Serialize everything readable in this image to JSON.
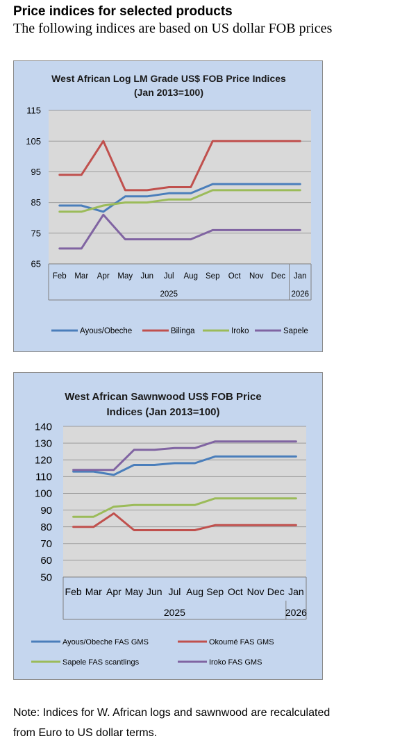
{
  "header": {
    "title": "Price indices for selected products",
    "subtitle": "The following indices are based on US dollar FOB prices"
  },
  "chart_data": [
    {
      "type": "line",
      "title_line1": "West African Log LM Grade US$ FOB Price Indices",
      "title_line2": "(Jan 2013=100)",
      "categories": [
        "Feb",
        "Mar",
        "Apr",
        "May",
        "Jun",
        "Jul",
        "Aug",
        "Sep",
        "Oct",
        "Nov",
        "Dec",
        "Jan"
      ],
      "year_labels": [
        "2025",
        "2026"
      ],
      "yticks": [
        65,
        75,
        85,
        95,
        105,
        115
      ],
      "ylim": [
        65,
        115
      ],
      "grid": true,
      "legend_position": "bottom",
      "series": [
        {
          "name": "Ayous/Obeche",
          "color": "#4a7ebb",
          "values": [
            84,
            84,
            82,
            87,
            87,
            88,
            88,
            91,
            91,
            91,
            91,
            91
          ]
        },
        {
          "name": "Bilinga",
          "color": "#c0504d",
          "values": [
            94,
            94,
            105,
            89,
            89,
            90,
            90,
            105,
            105,
            105,
            105,
            105
          ]
        },
        {
          "name": "Iroko",
          "color": "#9bbb59",
          "values": [
            82,
            82,
            84,
            85,
            85,
            86,
            86,
            89,
            89,
            89,
            89,
            89
          ]
        },
        {
          "name": "Sapele",
          "color": "#8064a2",
          "values": [
            70,
            70,
            81,
            73,
            73,
            73,
            73,
            76,
            76,
            76,
            76,
            76
          ]
        }
      ]
    },
    {
      "type": "line",
      "title_line1": "West African Sawnwood US$ FOB Price",
      "title_line2": "Indices (Jan 2013=100)",
      "categories": [
        "Feb",
        "Mar",
        "Apr",
        "May",
        "Jun",
        "Jul",
        "Aug",
        "Sep",
        "Oct",
        "Nov",
        "Dec",
        "Jan"
      ],
      "year_labels": [
        "2025",
        "2026"
      ],
      "yticks": [
        50,
        60,
        70,
        80,
        90,
        100,
        110,
        120,
        130,
        140
      ],
      "ylim": [
        50,
        140
      ],
      "grid": true,
      "legend_position": "bottom",
      "series": [
        {
          "name": "Ayous/Obeche  FAS GMS",
          "color": "#4a7ebb",
          "values": [
            113,
            113,
            111,
            117,
            117,
            118,
            118,
            122,
            122,
            122,
            122,
            122
          ]
        },
        {
          "name": "Okoumé  FAS GMS",
          "color": "#c0504d",
          "values": [
            80,
            80,
            88,
            78,
            78,
            78,
            78,
            81,
            81,
            81,
            81,
            81
          ]
        },
        {
          "name": "Sapele FAS scantlings",
          "color": "#9bbb59",
          "values": [
            86,
            86,
            92,
            93,
            93,
            93,
            93,
            97,
            97,
            97,
            97,
            97
          ]
        },
        {
          "name": "Iroko FAS GMS",
          "color": "#8064a2",
          "values": [
            114,
            114,
            114,
            126,
            126,
            127,
            127,
            131,
            131,
            131,
            131,
            131
          ]
        }
      ]
    }
  ],
  "note": {
    "line1": "Note: Indices for W. African logs and sawnwood are recalculated",
    "line2": "from Euro to US dollar terms."
  }
}
